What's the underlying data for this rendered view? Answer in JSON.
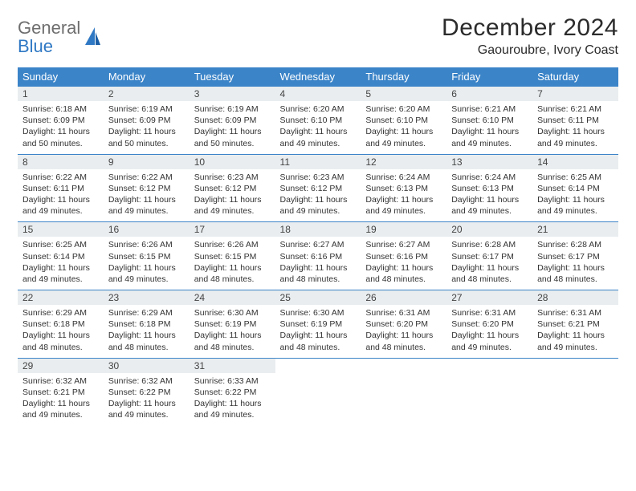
{
  "brand": {
    "word1": "General",
    "word2": "Blue"
  },
  "title": "December 2024",
  "location": "Gaouroubre, Ivory Coast",
  "colors": {
    "header_bg": "#3b84c8",
    "header_fg": "#ffffff",
    "daynum_bg": "#e9edef",
    "border": "#3b84c8",
    "logo_gray": "#6e6e6e",
    "logo_blue": "#2f78c4"
  },
  "weekdays": [
    "Sunday",
    "Monday",
    "Tuesday",
    "Wednesday",
    "Thursday",
    "Friday",
    "Saturday"
  ],
  "days": [
    {
      "n": "1",
      "sr": "6:18 AM",
      "ss": "6:09 PM",
      "dl": "11 hours and 50 minutes."
    },
    {
      "n": "2",
      "sr": "6:19 AM",
      "ss": "6:09 PM",
      "dl": "11 hours and 50 minutes."
    },
    {
      "n": "3",
      "sr": "6:19 AM",
      "ss": "6:09 PM",
      "dl": "11 hours and 50 minutes."
    },
    {
      "n": "4",
      "sr": "6:20 AM",
      "ss": "6:10 PM",
      "dl": "11 hours and 49 minutes."
    },
    {
      "n": "5",
      "sr": "6:20 AM",
      "ss": "6:10 PM",
      "dl": "11 hours and 49 minutes."
    },
    {
      "n": "6",
      "sr": "6:21 AM",
      "ss": "6:10 PM",
      "dl": "11 hours and 49 minutes."
    },
    {
      "n": "7",
      "sr": "6:21 AM",
      "ss": "6:11 PM",
      "dl": "11 hours and 49 minutes."
    },
    {
      "n": "8",
      "sr": "6:22 AM",
      "ss": "6:11 PM",
      "dl": "11 hours and 49 minutes."
    },
    {
      "n": "9",
      "sr": "6:22 AM",
      "ss": "6:12 PM",
      "dl": "11 hours and 49 minutes."
    },
    {
      "n": "10",
      "sr": "6:23 AM",
      "ss": "6:12 PM",
      "dl": "11 hours and 49 minutes."
    },
    {
      "n": "11",
      "sr": "6:23 AM",
      "ss": "6:12 PM",
      "dl": "11 hours and 49 minutes."
    },
    {
      "n": "12",
      "sr": "6:24 AM",
      "ss": "6:13 PM",
      "dl": "11 hours and 49 minutes."
    },
    {
      "n": "13",
      "sr": "6:24 AM",
      "ss": "6:13 PM",
      "dl": "11 hours and 49 minutes."
    },
    {
      "n": "14",
      "sr": "6:25 AM",
      "ss": "6:14 PM",
      "dl": "11 hours and 49 minutes."
    },
    {
      "n": "15",
      "sr": "6:25 AM",
      "ss": "6:14 PM",
      "dl": "11 hours and 49 minutes."
    },
    {
      "n": "16",
      "sr": "6:26 AM",
      "ss": "6:15 PM",
      "dl": "11 hours and 49 minutes."
    },
    {
      "n": "17",
      "sr": "6:26 AM",
      "ss": "6:15 PM",
      "dl": "11 hours and 48 minutes."
    },
    {
      "n": "18",
      "sr": "6:27 AM",
      "ss": "6:16 PM",
      "dl": "11 hours and 48 minutes."
    },
    {
      "n": "19",
      "sr": "6:27 AM",
      "ss": "6:16 PM",
      "dl": "11 hours and 48 minutes."
    },
    {
      "n": "20",
      "sr": "6:28 AM",
      "ss": "6:17 PM",
      "dl": "11 hours and 48 minutes."
    },
    {
      "n": "21",
      "sr": "6:28 AM",
      "ss": "6:17 PM",
      "dl": "11 hours and 48 minutes."
    },
    {
      "n": "22",
      "sr": "6:29 AM",
      "ss": "6:18 PM",
      "dl": "11 hours and 48 minutes."
    },
    {
      "n": "23",
      "sr": "6:29 AM",
      "ss": "6:18 PM",
      "dl": "11 hours and 48 minutes."
    },
    {
      "n": "24",
      "sr": "6:30 AM",
      "ss": "6:19 PM",
      "dl": "11 hours and 48 minutes."
    },
    {
      "n": "25",
      "sr": "6:30 AM",
      "ss": "6:19 PM",
      "dl": "11 hours and 48 minutes."
    },
    {
      "n": "26",
      "sr": "6:31 AM",
      "ss": "6:20 PM",
      "dl": "11 hours and 48 minutes."
    },
    {
      "n": "27",
      "sr": "6:31 AM",
      "ss": "6:20 PM",
      "dl": "11 hours and 49 minutes."
    },
    {
      "n": "28",
      "sr": "6:31 AM",
      "ss": "6:21 PM",
      "dl": "11 hours and 49 minutes."
    },
    {
      "n": "29",
      "sr": "6:32 AM",
      "ss": "6:21 PM",
      "dl": "11 hours and 49 minutes."
    },
    {
      "n": "30",
      "sr": "6:32 AM",
      "ss": "6:22 PM",
      "dl": "11 hours and 49 minutes."
    },
    {
      "n": "31",
      "sr": "6:33 AM",
      "ss": "6:22 PM",
      "dl": "11 hours and 49 minutes."
    }
  ],
  "labels": {
    "sunrise": "Sunrise:",
    "sunset": "Sunset:",
    "daylight": "Daylight:"
  }
}
